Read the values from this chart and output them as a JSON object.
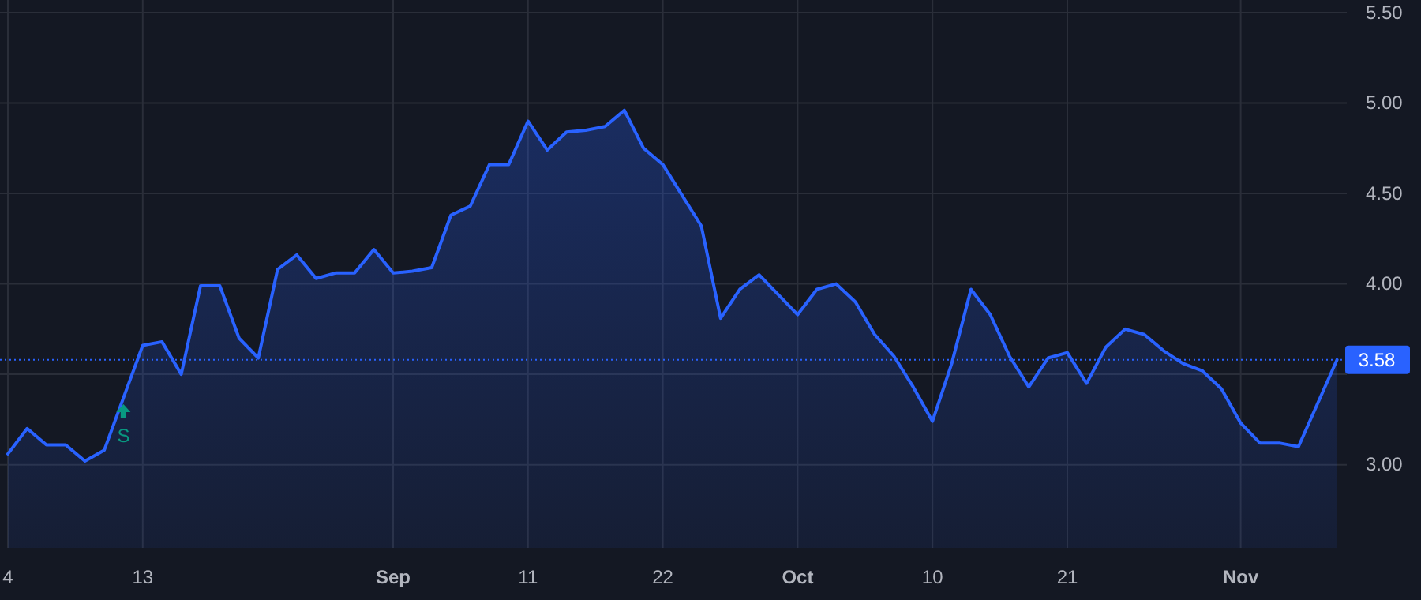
{
  "chart_data": {
    "type": "area",
    "categories": [
      "4",
      null,
      null,
      null,
      null,
      null,
      null,
      "13",
      null,
      null,
      null,
      null,
      null,
      null,
      null,
      null,
      null,
      null,
      null,
      null,
      "Sep",
      null,
      null,
      null,
      null,
      null,
      null,
      "11",
      null,
      null,
      null,
      null,
      null,
      null,
      "22",
      null,
      null,
      null,
      null,
      null,
      null,
      "Oct",
      null,
      null,
      null,
      null,
      null,
      null,
      "10",
      null,
      null,
      null,
      null,
      null,
      null,
      "21",
      null,
      null,
      null,
      null,
      null,
      null,
      null,
      null,
      "Nov",
      null,
      null,
      null,
      null,
      null
    ],
    "series": [
      {
        "color": "#2962ff",
        "values": [
          3.06,
          3.2,
          3.11,
          3.11,
          3.02,
          3.08,
          3.37,
          3.66,
          3.68,
          3.5,
          3.99,
          3.99,
          3.7,
          3.59,
          4.08,
          4.16,
          4.03,
          4.06,
          4.06,
          4.19,
          4.06,
          4.07,
          4.09,
          4.38,
          4.43,
          4.66,
          4.66,
          4.9,
          4.74,
          4.84,
          4.85,
          4.87,
          4.96,
          4.75,
          4.66,
          4.49,
          4.32,
          3.81,
          3.97,
          4.05,
          3.94,
          3.83,
          3.97,
          4.0,
          3.9,
          3.72,
          3.6,
          3.43,
          3.24,
          3.56,
          3.97,
          3.83,
          3.6,
          3.43,
          3.59,
          3.62,
          3.45,
          3.65,
          3.75,
          3.72,
          3.63,
          3.56,
          3.52,
          3.42,
          3.23,
          3.12,
          3.12,
          3.1,
          3.34,
          3.58
        ]
      }
    ],
    "ylim": [
      2.54,
      5.57
    ],
    "yticks": [
      {
        "value": 3,
        "label": "3.00"
      },
      {
        "value": 3.5,
        "label": null
      },
      {
        "value": 4,
        "label": "4.00"
      },
      {
        "value": 4.5,
        "label": "4.50"
      },
      {
        "value": 5,
        "label": "5.00"
      },
      {
        "value": 5.5,
        "label": "5.50"
      }
    ],
    "grid": true,
    "ref_lines": [
      {
        "axis": "y",
        "value": 3.58,
        "label": "3.58",
        "color": "#2962ff",
        "line_style": "dotted"
      }
    ],
    "annotations": [
      "S"
    ]
  }
}
